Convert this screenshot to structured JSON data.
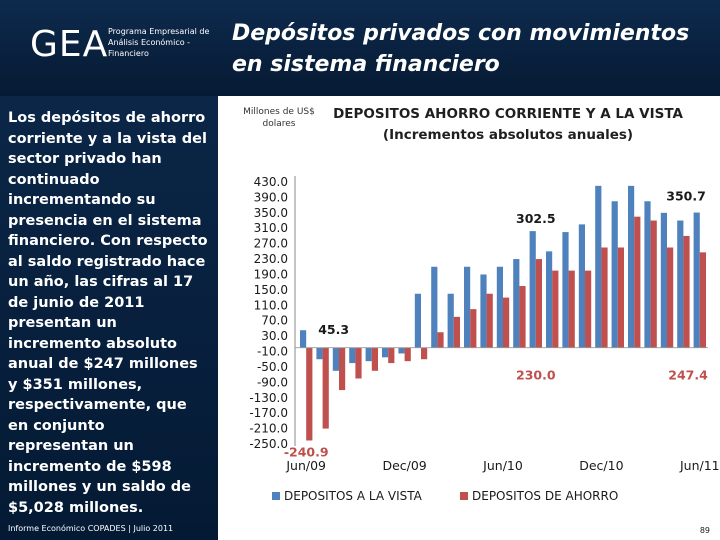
{
  "header": {
    "logo": "GEA",
    "logo_sub": "Programa Empresarial de Análisis Económico - Financiero",
    "title": "Depósitos privados con movimientos en sistema financiero"
  },
  "sidebar": {
    "text": "Los depósitos de ahorro corriente y a la vista del sector privado han continuado incrementando su presencia en el sistema financiero. Con respecto al saldo registrado hace un año, las cifras al 17 de junio de 2011 presentan un incremento absoluto anual de $247 millones y $351 millones, respectivamente, que en conjunto representan un incremento de $598 millones y un saldo de $5,028 millones."
  },
  "footer": {
    "text": "Informe Económico COPADES  |  Julio 2011",
    "page": "89"
  },
  "chart_data": {
    "type": "bar",
    "title": "DEPOSITOS AHORRO CORRIENTE Y A LA VISTA",
    "subtitle": "(Incrementos absolutos anuales)",
    "ylabel": "Millones de US$ dolares",
    "ylim": [
      -250,
      430
    ],
    "y_ticks": [
      "430.0",
      "390.0",
      "350.0",
      "310.0",
      "270.0",
      "230.0",
      "190.0",
      "150.0",
      "110.0",
      "70.0",
      "30.0",
      "-10.0",
      "-50.0",
      "-90.0",
      "-130.0",
      "-170.0",
      "-210.0",
      "-250.0"
    ],
    "x_tick_labels": [
      "Jun/09",
      "Dec/09",
      "Jun/10",
      "Dec/10",
      "Jun/11"
    ],
    "x_tick_positions": [
      0,
      6,
      12,
      18,
      24
    ],
    "series": [
      {
        "name": "DEPOSITOS A LA VISTA",
        "color": "#4f81bd",
        "values": [
          45.3,
          -30,
          -60,
          -40,
          -35,
          -25,
          -15,
          140,
          210,
          140,
          210,
          190,
          210,
          230,
          302.5,
          250,
          300,
          320,
          420,
          380,
          420,
          380,
          350,
          330,
          350.7
        ]
      },
      {
        "name": "DEPOSITOS DE AHORRO",
        "color": "#c0504d",
        "values": [
          -240.9,
          -210,
          -110,
          -80,
          -60,
          -40,
          -35,
          -30,
          40,
          80,
          100,
          140,
          130,
          160,
          230.0,
          200,
          200,
          200,
          260,
          260,
          340,
          330,
          260,
          290,
          247.4
        ]
      }
    ],
    "data_labels": [
      {
        "text": "45.3",
        "series": 0,
        "index": 0
      },
      {
        "text": "-240.9",
        "series": 1,
        "index": 0
      },
      {
        "text": "302.5",
        "series": 0,
        "index": 14
      },
      {
        "text": "230.0",
        "series": 1,
        "index": 14
      },
      {
        "text": "350.7",
        "series": 0,
        "index": 24
      },
      {
        "text": "247.4",
        "series": 1,
        "index": 24
      }
    ],
    "legend": [
      {
        "text": "DEPOSITOS A LA VISTA",
        "color": "#4f81bd"
      },
      {
        "text": "DEPOSITOS DE AHORRO",
        "color": "#c0504d"
      }
    ],
    "legend_position": "bottom"
  }
}
